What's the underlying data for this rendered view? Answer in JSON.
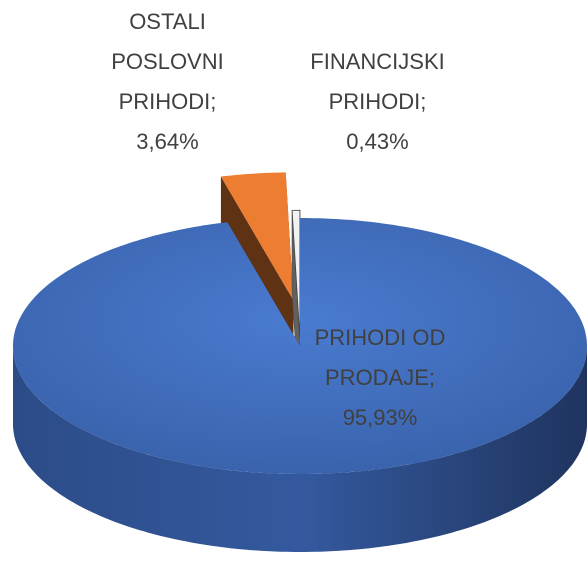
{
  "chart_data": {
    "type": "pie",
    "categories": [
      "PRIHODI OD PRODAJE",
      "OSTALI POSLOVNI PRIHODI",
      "FINANCIJSKI PRIHODI"
    ],
    "values": [
      95.93,
      3.64,
      0.43
    ],
    "value_labels": [
      "95,93%",
      "3,64%",
      "0,43%"
    ],
    "label_separator": ";",
    "colors": [
      "#4472c4",
      "#ed7d31",
      "#f2f2f2"
    ]
  }
}
